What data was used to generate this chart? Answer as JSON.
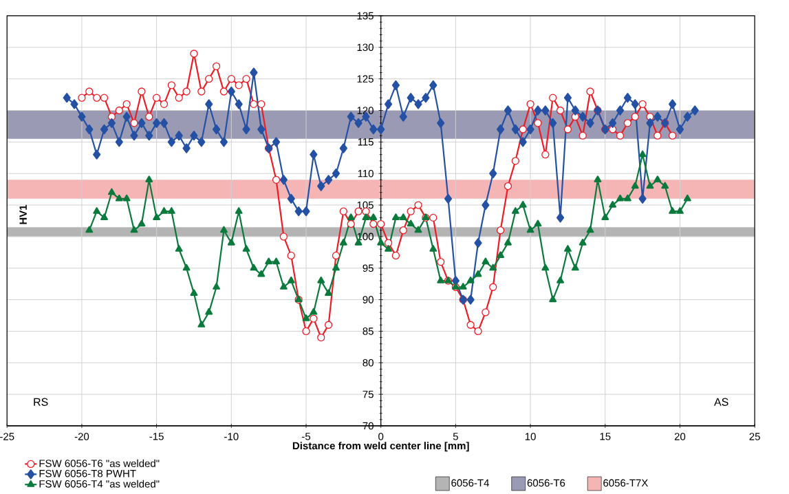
{
  "chart_data": {
    "type": "line",
    "xlabel": "Distance from weld center line [mm]",
    "ylabel": "HV1",
    "xlim": [
      -25,
      25
    ],
    "ylim": [
      70,
      135
    ],
    "xticks": [
      -25,
      -20,
      -15,
      -10,
      -5,
      0,
      5,
      10,
      15,
      20,
      25
    ],
    "yticks": [
      70,
      75,
      80,
      85,
      90,
      95,
      100,
      105,
      110,
      115,
      120,
      125,
      130,
      135
    ],
    "grid": true,
    "legend": "bottom left",
    "series": [
      {
        "name": "FSW 6056-T6 \"as welded\"",
        "color": "#ee1c25",
        "marker": "circle",
        "x": [
          -20,
          -19.5,
          -19,
          -18.5,
          -18,
          -17.5,
          -17,
          -16.5,
          -16,
          -15.5,
          -15,
          -14.5,
          -14,
          -13.5,
          -13,
          -12.5,
          -12,
          -11.5,
          -11,
          -10.5,
          -10,
          -9.5,
          -9,
          -8.5,
          -8,
          -7.5,
          -7,
          -6.5,
          -6,
          -5.5,
          -5,
          -4.5,
          -4,
          -3.5,
          -3,
          -2.5,
          -2,
          -1.5,
          -1,
          -0.5,
          0,
          0.5,
          1,
          1.5,
          2,
          2.5,
          3,
          3.5,
          4,
          4.5,
          5,
          5.5,
          6,
          6.5,
          7,
          7.5,
          8,
          8.5,
          9,
          9.5,
          10,
          10.5,
          11,
          11.5,
          12,
          12.5,
          13,
          13.5,
          14,
          14.5,
          15,
          15.5,
          16,
          16.5,
          17,
          17.5,
          18,
          18.5,
          19,
          19.5
        ],
        "values": [
          122,
          123,
          122,
          122,
          119,
          120,
          121,
          118,
          123,
          119,
          122,
          121,
          124,
          122,
          123,
          129,
          123,
          125,
          127,
          123,
          125,
          124,
          125,
          121,
          121,
          114,
          109,
          100,
          97,
          90,
          85,
          87,
          84,
          86,
          97,
          104,
          102,
          104,
          104,
          102,
          102,
          99,
          97,
          101,
          104,
          105,
          103,
          103,
          96,
          93,
          92,
          90,
          86,
          85,
          88,
          92,
          101,
          108,
          112,
          117,
          121,
          118,
          113,
          122,
          120,
          117,
          119,
          116,
          123,
          120,
          117,
          117,
          116,
          118,
          119,
          121,
          119,
          116,
          118,
          116
        ]
      },
      {
        "name": "FSW 6056-T8 PWHT",
        "color": "#2451a4",
        "marker": "diamond",
        "x": [
          -21,
          -20.5,
          -20,
          -19.5,
          -19,
          -18.5,
          -18,
          -17.5,
          -17,
          -16.5,
          -16,
          -15.5,
          -15,
          -14.5,
          -14,
          -13.5,
          -13,
          -12.5,
          -12,
          -11.5,
          -11,
          -10.5,
          -10,
          -9.5,
          -9,
          -8.5,
          -8,
          -7.5,
          -7,
          -6.5,
          -6,
          -5.5,
          -5,
          -4.5,
          -4,
          -3.5,
          -3,
          -2.5,
          -2,
          -1.5,
          -1,
          -0.5,
          0,
          0.5,
          1,
          1.5,
          2,
          2.5,
          3,
          3.5,
          4,
          4.5,
          5,
          5.5,
          6,
          6.5,
          7,
          7.5,
          8,
          8.5,
          9,
          9.5,
          10,
          10.5,
          11,
          11.5,
          12,
          12.5,
          13,
          13.5,
          14,
          14.5,
          15,
          15.5,
          16,
          16.5,
          17,
          17.5,
          18,
          18.5,
          19,
          19.5,
          20,
          20.5,
          21
        ],
        "values": [
          122,
          121,
          119,
          117,
          113,
          117,
          118,
          115,
          119,
          116,
          118,
          116,
          118,
          118,
          115,
          116,
          114,
          116,
          115,
          121,
          117,
          115,
          123,
          121,
          117,
          126,
          117,
          114,
          115,
          109,
          106,
          104,
          104,
          113,
          108,
          109,
          110,
          114,
          119,
          118,
          119,
          117,
          117,
          121,
          124,
          119,
          122,
          121,
          122,
          124,
          118,
          106,
          93,
          90,
          90,
          99,
          105,
          110,
          117,
          120,
          117,
          115,
          117,
          120,
          120,
          118,
          103,
          122,
          120,
          119,
          118,
          120,
          117,
          118,
          120,
          122,
          121,
          106,
          118,
          119,
          118,
          121,
          117,
          119,
          120
        ]
      },
      {
        "name": "FSW 6056-T4 \"as welded\"",
        "color": "#0a7a3c",
        "marker": "triangle",
        "x": [
          -19.5,
          -19,
          -18.5,
          -18,
          -17.5,
          -17,
          -16.5,
          -16,
          -15.5,
          -15,
          -14.5,
          -14,
          -13.5,
          -13,
          -12.5,
          -12,
          -11.5,
          -11,
          -10.5,
          -10,
          -9.5,
          -9,
          -8.5,
          -8,
          -7.5,
          -7,
          -6.5,
          -6,
          -5.5,
          -5,
          -4.5,
          -4,
          -3.5,
          -3,
          -2.5,
          -2,
          -1.5,
          -1,
          -0.5,
          0,
          0.5,
          1,
          1.5,
          2,
          2.5,
          3,
          3.5,
          4,
          4.5,
          5,
          5.5,
          6,
          6.5,
          7,
          7.5,
          8,
          8.5,
          9,
          9.5,
          10,
          10.5,
          11,
          11.5,
          12,
          12.5,
          13,
          13.5,
          14,
          14.5,
          15,
          15.5,
          16,
          16.5,
          17,
          17.5,
          18,
          18.5,
          19,
          19.5,
          20,
          20.5
        ],
        "values": [
          101,
          104,
          103,
          107,
          106,
          106,
          101,
          102,
          109,
          103,
          104,
          104,
          98,
          95,
          91,
          86,
          88,
          92,
          101,
          99,
          104,
          98,
          95,
          94,
          96,
          96,
          92,
          93,
          90,
          87,
          88,
          93,
          91,
          95,
          99,
          103,
          99,
          103,
          103,
          99,
          98,
          103,
          103,
          102,
          101,
          103,
          98,
          93,
          93,
          92,
          92,
          93,
          94,
          96,
          95,
          97,
          99,
          104,
          105,
          101,
          102,
          95,
          90,
          93,
          98,
          95,
          99,
          101,
          109,
          103,
          105,
          106,
          106,
          108,
          113,
          108,
          109,
          108,
          104,
          104,
          106
        ]
      }
    ],
    "bands": [
      {
        "axis": "y",
        "from": 100,
        "to": 101.5,
        "label": "6056-T4",
        "color": "#b4b4b4"
      },
      {
        "axis": "y",
        "from": 115.5,
        "to": 120,
        "label": "6056-T6",
        "color": "#9a9ab4"
      },
      {
        "axis": "y",
        "from": 106,
        "to": 109,
        "label": "6056-T7X",
        "color": "#f5b5b5"
      }
    ],
    "annotations": [
      "RS",
      "AS"
    ]
  }
}
